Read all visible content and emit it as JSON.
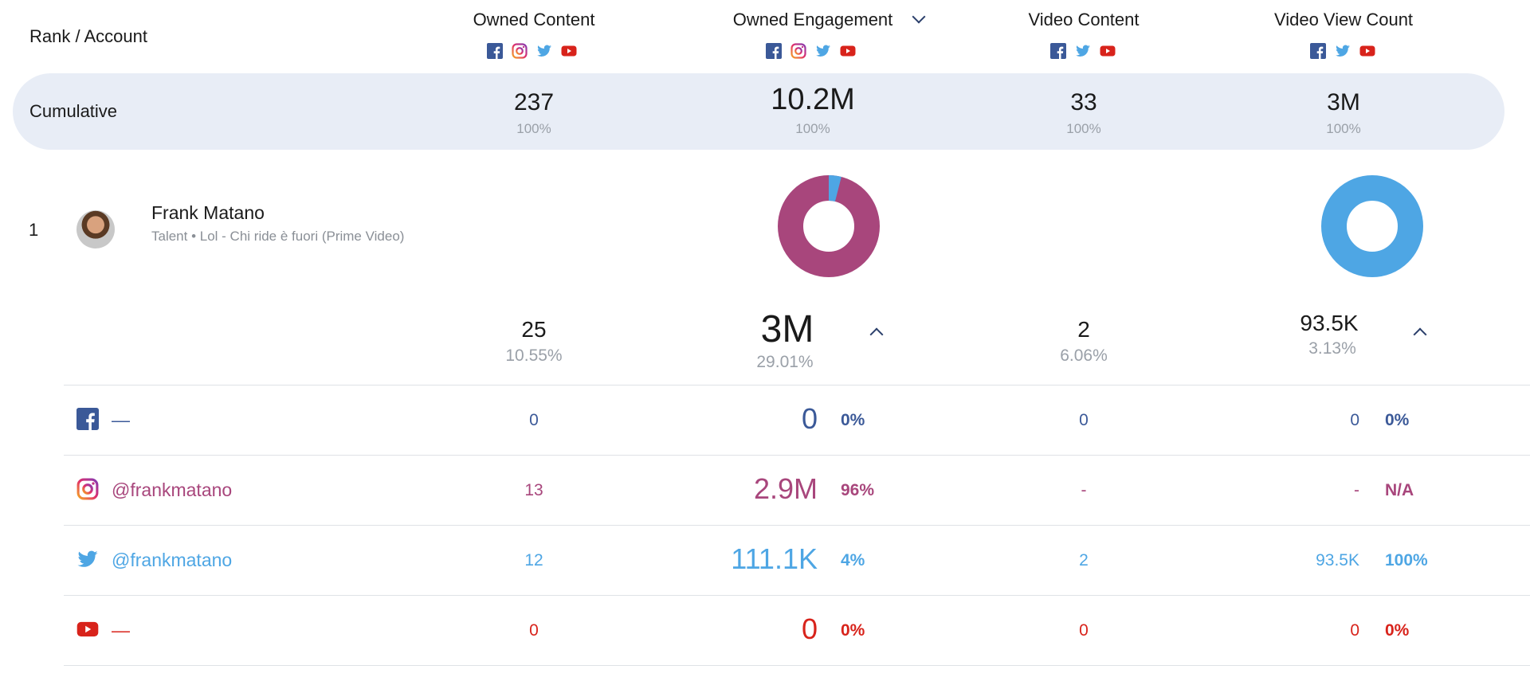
{
  "header": {
    "rank_account": "Rank / Account",
    "columns": [
      {
        "label": "Owned Content"
      },
      {
        "label": "Owned Engagement"
      },
      {
        "label": "Video Content"
      },
      {
        "label": "Video View Count"
      }
    ]
  },
  "cumulative": {
    "label": "Cumulative",
    "owned_content": {
      "value": "237",
      "pct": "100%"
    },
    "owned_engagement": {
      "value": "10.2M",
      "pct": "100%"
    },
    "video_content": {
      "value": "33",
      "pct": "100%"
    },
    "video_view_count": {
      "value": "3M",
      "pct": "100%"
    }
  },
  "account": {
    "rank": "1",
    "name": "Frank Matano",
    "subtitle": "Talent • Lol - Chi ride è fuori (Prime Video)",
    "owned_content": {
      "value": "25",
      "pct": "10.55%"
    },
    "owned_engagement": {
      "value": "3M",
      "pct": "29.01%"
    },
    "video_content": {
      "value": "2",
      "pct": "6.06%"
    },
    "video_view_count": {
      "value": "93.5K",
      "pct": "3.13%"
    },
    "engagement_share": {
      "instagram": 0.96,
      "twitter": 0.04
    },
    "view_share": {
      "twitter": 1.0
    }
  },
  "colors": {
    "facebook": "#3b5998",
    "instagram": "#a8467c",
    "twitter": "#4ea6e4",
    "youtube": "#d8231b",
    "band": "#e8edf6"
  },
  "rows": [
    {
      "network": "facebook",
      "icon": "facebook-icon",
      "handle": "—",
      "owned_content": "0",
      "owned_engagement": "0",
      "engagement_pct": "0%",
      "video_content": "0",
      "video_views": "0",
      "views_pct": "0%"
    },
    {
      "network": "instagram",
      "icon": "instagram-icon",
      "handle": "@frankmatano",
      "owned_content": "13",
      "owned_engagement": "2.9M",
      "engagement_pct": "96%",
      "video_content": "-",
      "video_views": "-",
      "views_pct": "N/A"
    },
    {
      "network": "twitter",
      "icon": "twitter-icon",
      "handle": "@frankmatano",
      "owned_content": "12",
      "owned_engagement": "111.1K",
      "engagement_pct": "4%",
      "video_content": "2",
      "video_views": "93.5K",
      "views_pct": "100%"
    },
    {
      "network": "youtube",
      "icon": "youtube-icon",
      "handle": "—",
      "owned_content": "0",
      "owned_engagement": "0",
      "engagement_pct": "0%",
      "video_content": "0",
      "video_views": "0",
      "views_pct": "0%"
    }
  ]
}
